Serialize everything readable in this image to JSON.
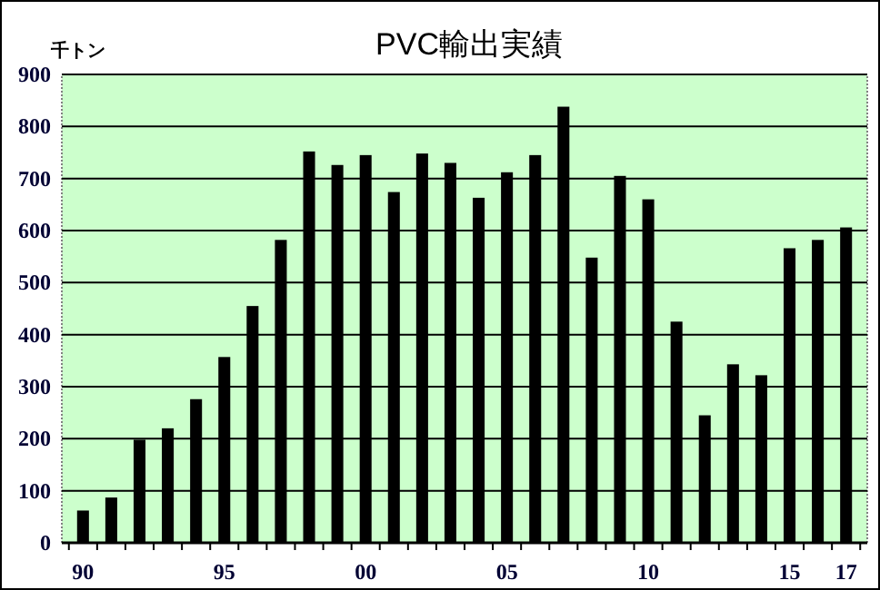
{
  "chart_data": {
    "type": "bar",
    "title": "PVC輸出実績",
    "ylabel": "千トン",
    "categories": [
      "90",
      null,
      null,
      null,
      null,
      "95",
      null,
      null,
      null,
      null,
      "00",
      null,
      null,
      null,
      null,
      "05",
      null,
      null,
      null,
      null,
      "10",
      null,
      null,
      null,
      null,
      "15",
      null,
      "17"
    ],
    "values": [
      62,
      87,
      198,
      220,
      276,
      357,
      455,
      582,
      752,
      726,
      745,
      674,
      748,
      730,
      663,
      712,
      745,
      838,
      548,
      705,
      660,
      425,
      245,
      343,
      322,
      566,
      582,
      606
    ],
    "color": "#000000",
    "ylim": [
      0,
      900
    ],
    "yticks": [
      0,
      100,
      200,
      300,
      400,
      500,
      600,
      700,
      800,
      900
    ],
    "grid": "y"
  }
}
